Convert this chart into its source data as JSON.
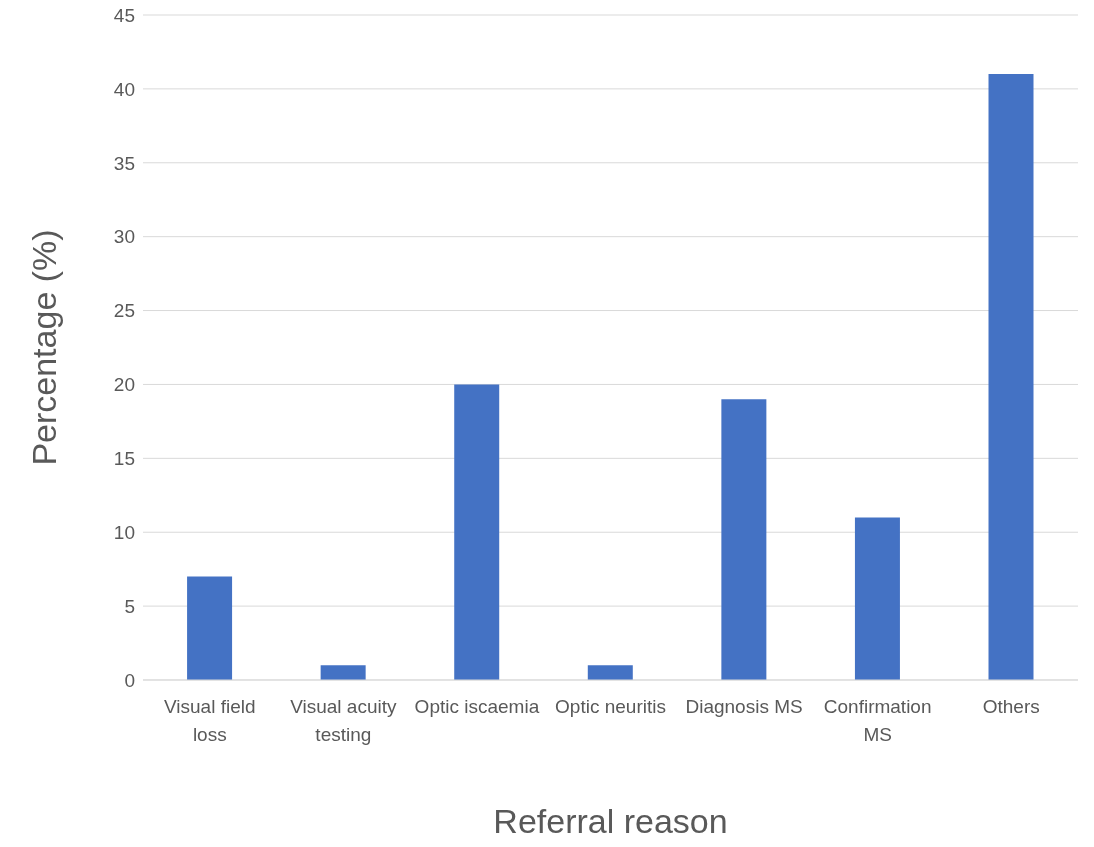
{
  "chart_data": {
    "type": "bar",
    "xlabel": "Referral reason",
    "ylabel": "Percentage (%)",
    "categories": [
      "Visual field loss",
      "Visual acuity testing",
      "Optic iscaemia",
      "Optic neuritis",
      "Diagnosis MS",
      "Confirmation MS",
      "Others"
    ],
    "values": [
      7,
      1,
      20,
      1,
      19,
      11,
      41
    ],
    "color": "#4472c4",
    "ylim": [
      0,
      45
    ],
    "yticks": [
      0,
      5,
      10,
      15,
      20,
      25,
      30,
      35,
      40,
      45
    ],
    "grid": "y",
    "legend": false
  }
}
